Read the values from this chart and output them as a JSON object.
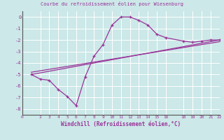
{
  "title": "Courbe du refroidissement éolien pour Wiesenburg",
  "xlabel": "Windchill (Refroidissement éolien,°C)",
  "bg_color": "#cce8e8",
  "grid_color": "#ffffff",
  "line_color": "#993399",
  "line1_x": [
    1,
    2,
    3,
    4,
    5,
    6,
    7,
    8,
    9,
    10,
    11,
    12,
    13,
    14,
    15,
    16,
    18,
    19,
    20,
    21,
    22
  ],
  "line1_y": [
    -5.0,
    -5.4,
    -5.5,
    -6.3,
    -6.9,
    -7.7,
    -5.2,
    -3.4,
    -2.4,
    -0.7,
    0.0,
    0.0,
    -0.3,
    -0.7,
    -1.5,
    -1.8,
    -2.1,
    -2.2,
    -2.1,
    -2.0,
    -2.0
  ],
  "line2_x": [
    1,
    22
  ],
  "line2_y": [
    -5.0,
    -2.0
  ],
  "line3_x": [
    1,
    22
  ],
  "line3_y": [
    -4.8,
    -2.15
  ],
  "xlim": [
    0,
    22
  ],
  "ylim": [
    -8.5,
    0.5
  ],
  "yticks": [
    0,
    -1,
    -2,
    -3,
    -4,
    -5,
    -6,
    -7,
    -8
  ],
  "xticks": [
    0,
    2,
    3,
    4,
    5,
    6,
    7,
    8,
    9,
    10,
    11,
    12,
    13,
    14,
    15,
    16,
    18,
    19,
    20,
    21,
    22
  ],
  "title_fontsize": 5.0,
  "xlabel_fontsize": 5.5,
  "tick_fontsize": 4.5
}
